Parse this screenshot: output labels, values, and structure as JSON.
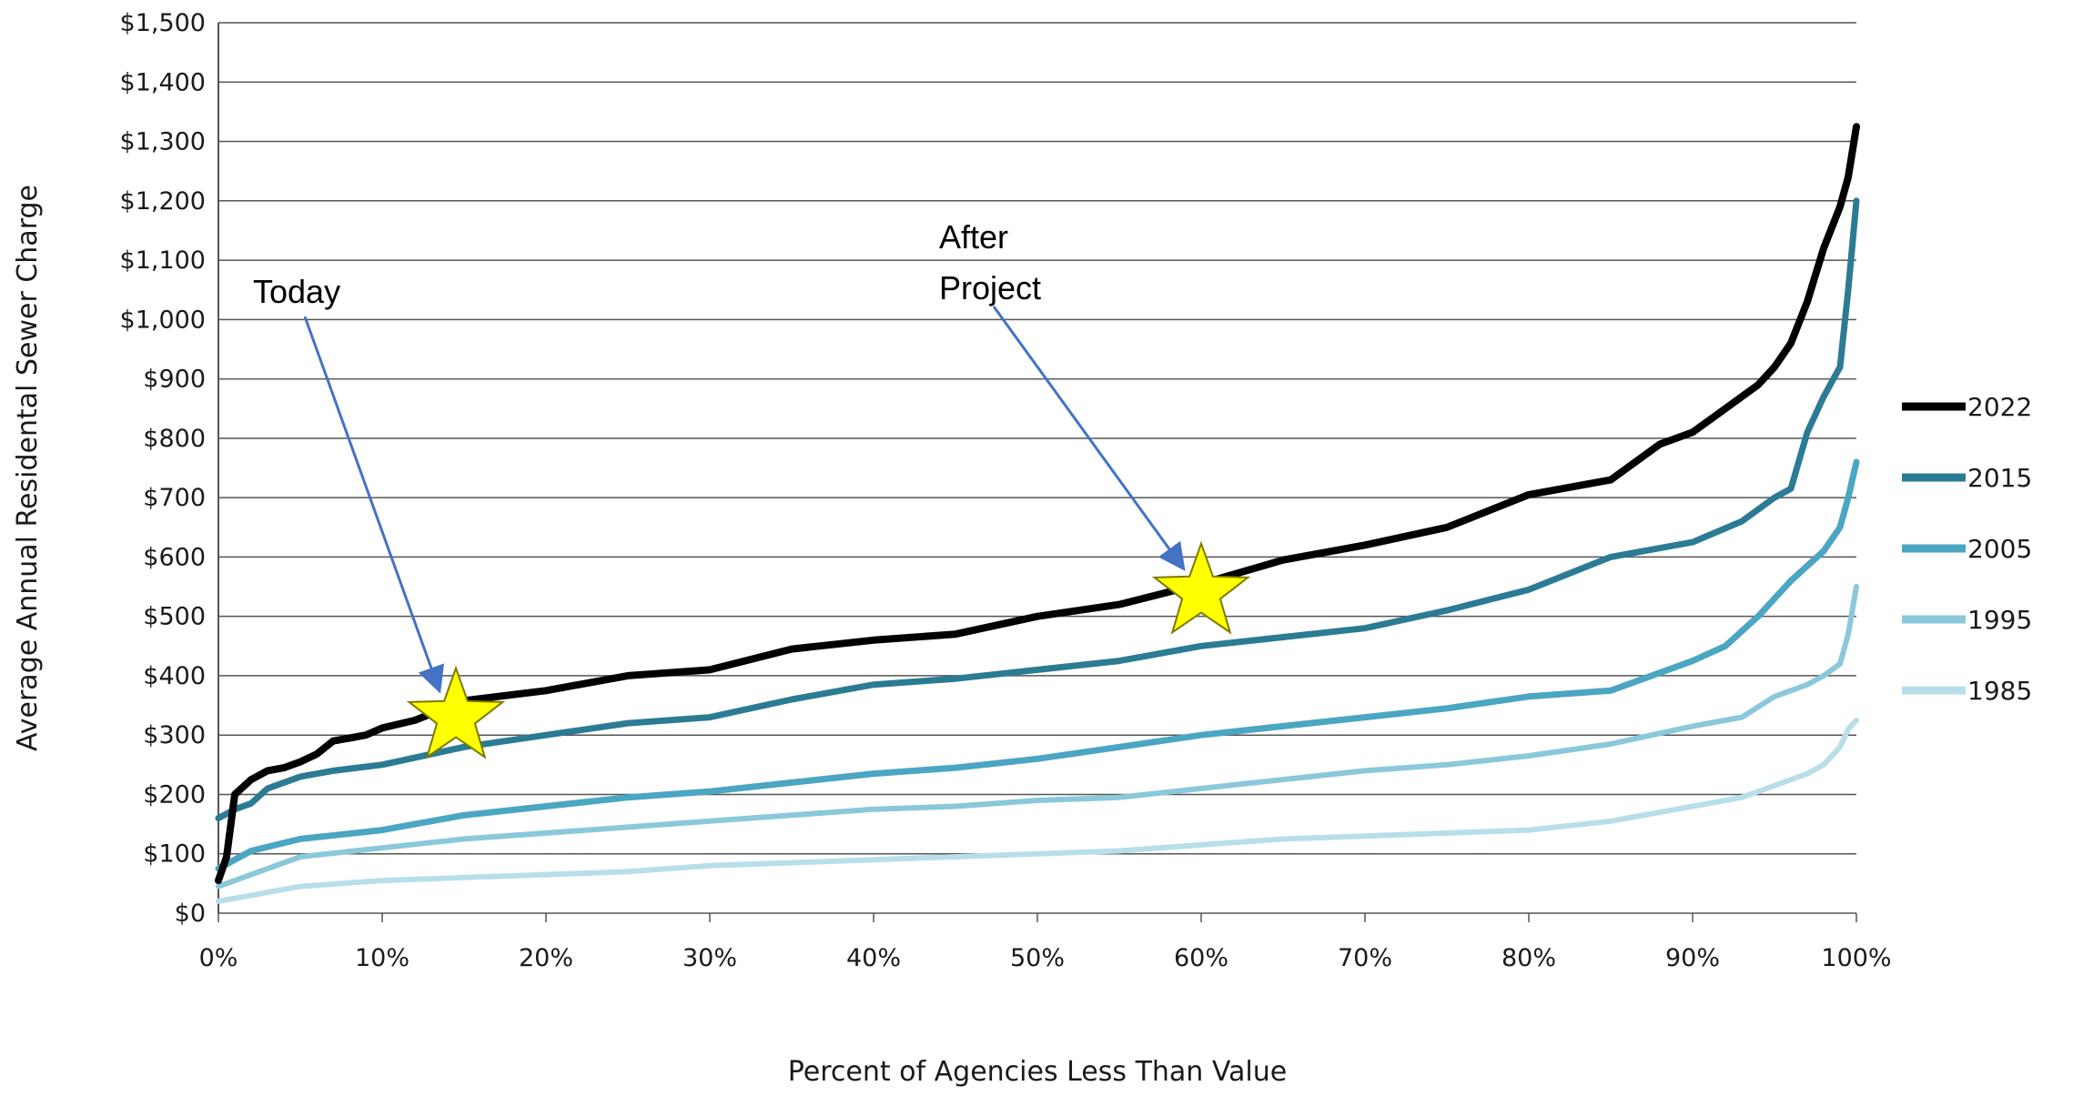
{
  "chart_data": {
    "type": "line",
    "xlabel": "Percent of Agencies Less Than Value",
    "ylabel": "Average Annual Residental Sewer Charge",
    "xlim": [
      0,
      100
    ],
    "ylim": [
      0,
      1500
    ],
    "x_ticks": [
      "0%",
      "10%",
      "20%",
      "30%",
      "40%",
      "50%",
      "60%",
      "70%",
      "80%",
      "90%",
      "100%"
    ],
    "y_ticks": [
      "$0",
      "$100",
      "$200",
      "$300",
      "$400",
      "$500",
      "$600",
      "$700",
      "$800",
      "$900",
      "$1,000",
      "$1,100",
      "$1,200",
      "$1,300",
      "$1,400",
      "$1,500"
    ],
    "grid": "horizontal",
    "legend_position": "right",
    "series": [
      {
        "name": "2022",
        "color": "#000000",
        "x": [
          0,
          0.5,
          1,
          2,
          3,
          4,
          5,
          6,
          7,
          8,
          9,
          10,
          12,
          15,
          20,
          25,
          30,
          35,
          40,
          45,
          50,
          55,
          60,
          65,
          70,
          75,
          80,
          85,
          88,
          90,
          92,
          94,
          95,
          96,
          97,
          98,
          99,
          99.5,
          100
        ],
        "y": [
          55,
          95,
          200,
          225,
          240,
          245,
          255,
          268,
          290,
          295,
          300,
          312,
          325,
          358,
          375,
          400,
          410,
          445,
          460,
          470,
          500,
          520,
          555,
          595,
          620,
          650,
          705,
          730,
          790,
          810,
          850,
          890,
          920,
          960,
          1030,
          1120,
          1190,
          1240,
          1325
        ]
      },
      {
        "name": "2015",
        "color": "#2b7b94",
        "x": [
          0,
          1,
          2,
          3,
          4,
          5,
          7,
          10,
          15,
          20,
          25,
          30,
          35,
          40,
          45,
          50,
          55,
          60,
          65,
          70,
          75,
          80,
          85,
          90,
          93,
          95,
          96,
          97,
          98,
          99,
          99.5,
          100
        ],
        "y": [
          160,
          175,
          185,
          210,
          220,
          230,
          240,
          250,
          280,
          300,
          320,
          330,
          360,
          385,
          395,
          410,
          425,
          450,
          465,
          480,
          510,
          545,
          600,
          625,
          660,
          700,
          715,
          810,
          870,
          920,
          1050,
          1200
        ]
      },
      {
        "name": "2005",
        "color": "#4aa6c2",
        "x": [
          0,
          2,
          5,
          10,
          15,
          20,
          25,
          30,
          35,
          40,
          45,
          50,
          55,
          60,
          65,
          70,
          75,
          80,
          85,
          88,
          90,
          92,
          94,
          96,
          98,
          99,
          99.5,
          100
        ],
        "y": [
          75,
          105,
          125,
          140,
          165,
          180,
          195,
          205,
          220,
          235,
          245,
          260,
          280,
          300,
          315,
          330,
          345,
          365,
          375,
          405,
          425,
          450,
          500,
          560,
          610,
          650,
          700,
          760
        ]
      },
      {
        "name": "1995",
        "color": "#8ac8da",
        "x": [
          0,
          2,
          5,
          10,
          15,
          20,
          25,
          30,
          35,
          40,
          45,
          50,
          55,
          60,
          65,
          70,
          75,
          80,
          85,
          90,
          93,
          95,
          97,
          98,
          99,
          99.5,
          100
        ],
        "y": [
          45,
          65,
          95,
          110,
          125,
          135,
          145,
          155,
          165,
          175,
          180,
          190,
          195,
          210,
          225,
          240,
          250,
          265,
          285,
          315,
          330,
          365,
          385,
          400,
          420,
          470,
          550
        ]
      },
      {
        "name": "1985",
        "color": "#b8dfe9",
        "x": [
          0,
          2,
          5,
          10,
          15,
          20,
          25,
          30,
          35,
          40,
          45,
          50,
          55,
          60,
          65,
          70,
          75,
          80,
          85,
          90,
          93,
          95,
          97,
          98,
          99,
          99.5,
          100
        ],
        "y": [
          20,
          30,
          45,
          55,
          60,
          65,
          70,
          80,
          85,
          90,
          95,
          100,
          105,
          115,
          125,
          130,
          135,
          140,
          155,
          180,
          195,
          215,
          235,
          250,
          280,
          310,
          325
        ]
      }
    ],
    "annotations": [
      {
        "text_lines": [
          "Today"
        ],
        "marker": "star",
        "target_x": 14.5,
        "target_y": 330
      },
      {
        "text_lines": [
          "After",
          "Project"
        ],
        "marker": "star",
        "target_x": 60,
        "target_y": 540
      }
    ]
  }
}
